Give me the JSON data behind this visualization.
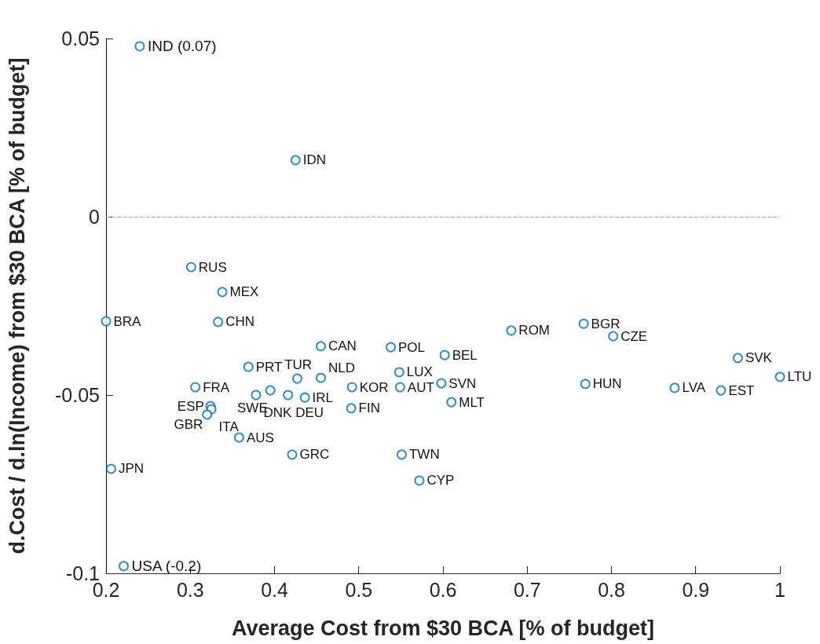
{
  "chart_data": {
    "type": "scatter",
    "xlabel": "Average Cost from $30 BCA [% of budget]",
    "ylabel": "d.Cost / d.ln(Income) from $30 BCA [% of budget]",
    "x": [
      0.24,
      0.425,
      0.301,
      0.338,
      0.2,
      0.333,
      0.455,
      0.369,
      0.427,
      0.455,
      0.306,
      0.395,
      0.378,
      0.416,
      0.436,
      0.324,
      0.325,
      0.32,
      0.358,
      0.421,
      0.206,
      0.221,
      0.492,
      0.491,
      0.538,
      0.548,
      0.549,
      0.602,
      0.598,
      0.61,
      0.551,
      0.572,
      0.681,
      0.767,
      0.802,
      0.769,
      0.95,
      1.0,
      0.875,
      0.93
    ],
    "values": [
      0.0478,
      0.0159,
      -0.0141,
      -0.0211,
      -0.0293,
      -0.0295,
      -0.0363,
      -0.0421,
      -0.0454,
      -0.0452,
      -0.0478,
      -0.0487,
      -0.05,
      -0.05,
      -0.0507,
      -0.0531,
      -0.054,
      -0.0555,
      -0.0619,
      -0.0667,
      -0.0707,
      -0.098,
      -0.0478,
      -0.0537,
      -0.0366,
      -0.0436,
      -0.0478,
      -0.0388,
      -0.0467,
      -0.052,
      -0.0667,
      -0.074,
      -0.0319,
      -0.03,
      -0.0335,
      -0.0469,
      -0.0396,
      -0.0449,
      -0.048,
      -0.0487
    ],
    "value_labels": [
      null,
      "IDN",
      "RUS",
      "MEX",
      "BRA",
      "CHN",
      "CAN",
      "PRT",
      "TUR",
      "NLD",
      "FRA",
      "SWE",
      "DNK",
      "DEU",
      "IRL",
      "ESP",
      "ITA",
      "GBR",
      "AUS",
      "GRC",
      "JPN",
      null,
      "KOR",
      "FIN",
      "POL",
      "LUX",
      "AUT",
      "BEL",
      "SVN",
      "MLT",
      "TWN",
      "CYP",
      "ROM",
      "BGR",
      "CZE",
      "HUN",
      "SVK",
      "LTU",
      "LVA",
      "EST"
    ],
    "color": "#0072bd",
    "marker": "circle",
    "xlim": [
      0.2,
      1
    ],
    "xticks": [
      0.2,
      0.3,
      0.4,
      0.5,
      0.6,
      0.7,
      0.8,
      0.9,
      1
    ],
    "ylim": [
      -0.1,
      0.05
    ],
    "yticks": [
      -0.1,
      -0.05,
      0,
      0.05
    ],
    "ref_lines": [
      {
        "axis": "y",
        "value": 0,
        "color": "#ff8080",
        "line_style": "dashed"
      }
    ],
    "annotations": [
      {
        "text": "IND (0.07)",
        "x": 0.24,
        "y": 0.0478
      },
      {
        "text": "USA (-0.2)",
        "x": 0.221,
        "y": -0.098
      }
    ],
    "grid": false
  }
}
